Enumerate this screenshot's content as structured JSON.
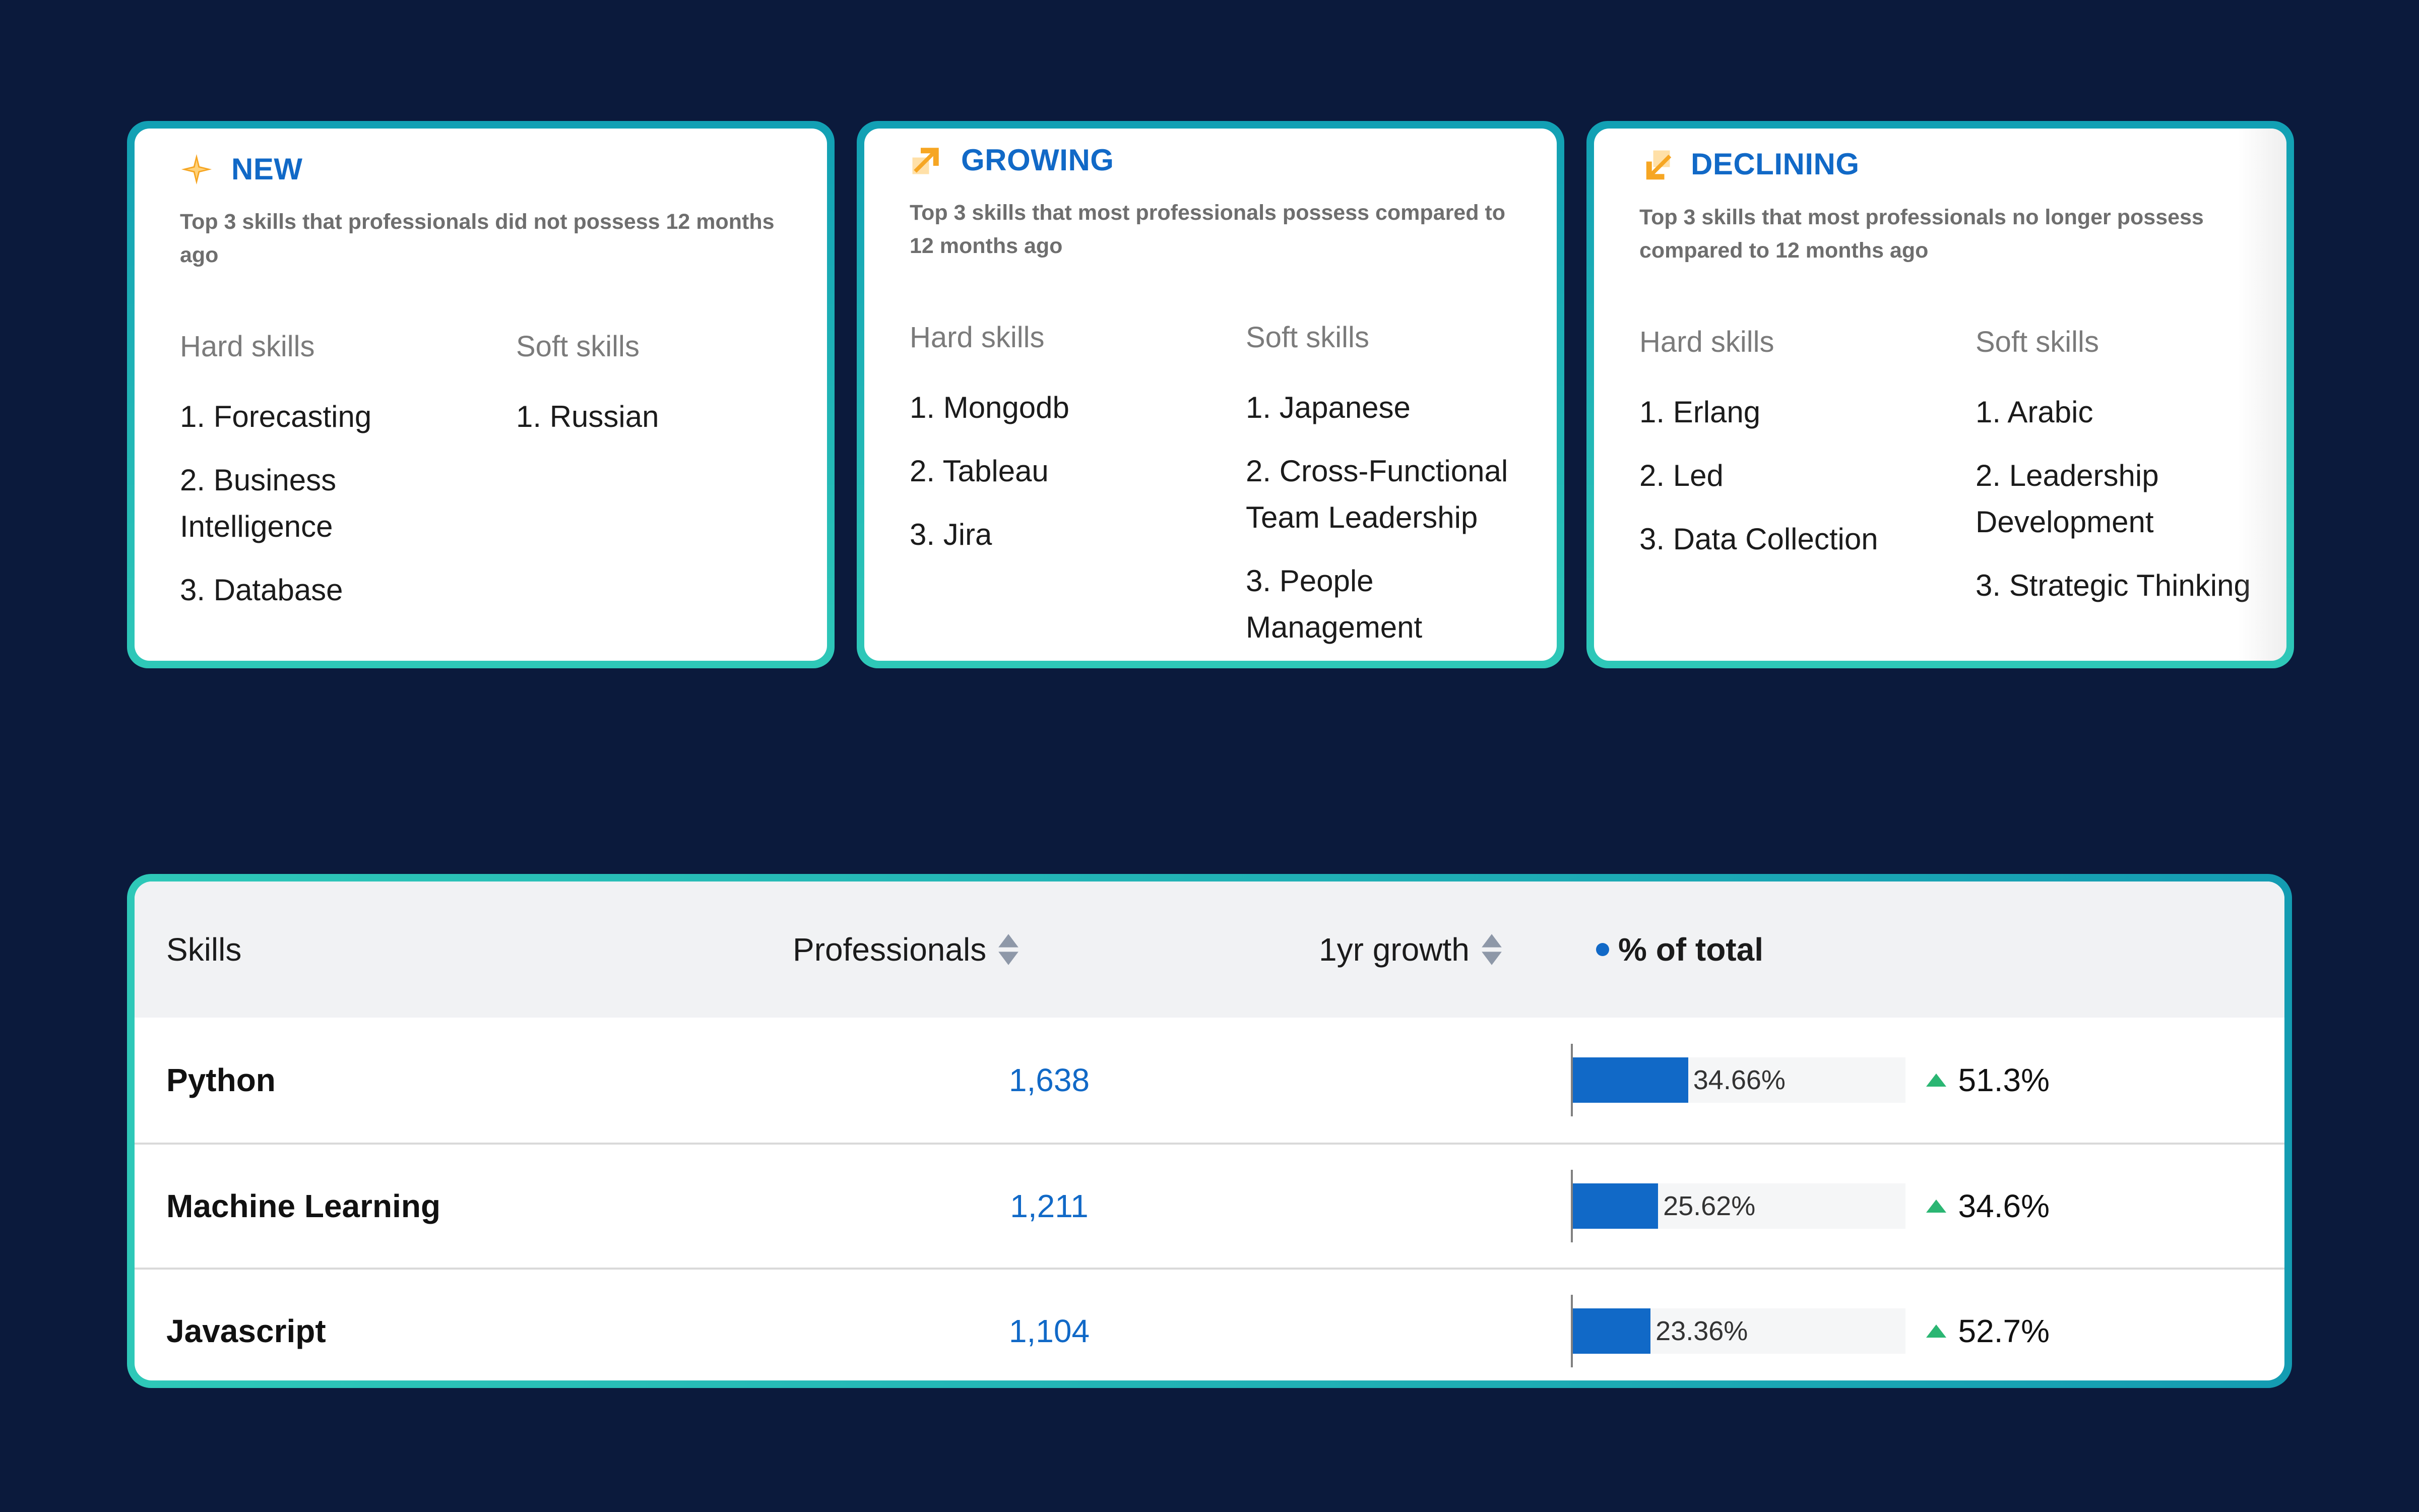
{
  "cards": [
    {
      "id": "new",
      "title": "NEW",
      "icon": "sparkle-icon",
      "description": "Top 3 skills that professionals did not possess 12 months ago",
      "hard_label": "Hard skills",
      "soft_label": "Soft skills",
      "hard_skills": [
        "1. Forecasting",
        "2. Business Intelligence",
        "3. Database"
      ],
      "soft_skills": [
        "1. Russian"
      ]
    },
    {
      "id": "growing",
      "title": "GROWING",
      "icon": "arrow-up-right-icon",
      "description": "Top 3 skills that most professionals possess compared to 12 months ago",
      "hard_label": "Hard skills",
      "soft_label": "Soft skills",
      "hard_skills": [
        "1. Mongodb",
        "2. Tableau",
        "3. Jira"
      ],
      "soft_skills": [
        "1. Japanese",
        "2. Cross-Functional Team Leadership",
        "3. People Management"
      ]
    },
    {
      "id": "declining",
      "title": "DECLINING",
      "icon": "arrow-down-left-icon",
      "description": "Top 3 skills that most professionals no longer possess compared to 12 months ago",
      "hard_label": "Hard skills",
      "soft_label": "Soft skills",
      "hard_skills": [
        "1. Erlang",
        "2. Led",
        "3. Data Collection"
      ],
      "soft_skills": [
        "1. Arabic",
        "2. Leadership Development",
        "3. Strategic Thinking"
      ]
    }
  ],
  "table": {
    "columns": {
      "skills": "Skills",
      "professionals": "Professionals",
      "growth": "1yr growth",
      "total": "% of total"
    },
    "rows": [
      {
        "skill": "Python",
        "professionals": "1,638",
        "growth": "51.3%",
        "total_label": "34.66%",
        "total_value": 34.66
      },
      {
        "skill": "Machine Learning",
        "professionals": "1,211",
        "growth": "34.6%",
        "total_label": "25.62%",
        "total_value": 25.62
      },
      {
        "skill": "Javascript",
        "professionals": "1,104",
        "growth": "52.7%",
        "total_label": "23.36%",
        "total_value": 23.36
      }
    ]
  },
  "colors": {
    "background": "#0b1a3c",
    "accent_blue": "#1169c7",
    "growth_up": "#2bb673",
    "card_border_teal": "#2ec8b8",
    "icon_orange": "#f6a623"
  }
}
